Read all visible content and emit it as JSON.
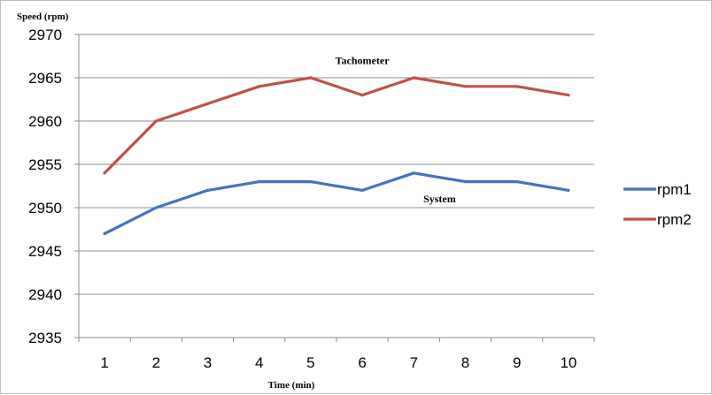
{
  "chart_data": {
    "type": "line",
    "ylabel": "Speed (rpm)",
    "xlabel": "Time (min)",
    "categories": [
      "1",
      "2",
      "3",
      "4",
      "5",
      "6",
      "7",
      "8",
      "9",
      "10"
    ],
    "ylim": [
      2935,
      2970
    ],
    "yticks": [
      2935,
      2940,
      2945,
      2950,
      2955,
      2960,
      2965,
      2970
    ],
    "grid": "horizontal",
    "legend_position": "right",
    "series": [
      {
        "name": "rpm1",
        "color": "#4472C4",
        "values": [
          2947,
          2950,
          2952,
          2953,
          2953,
          2952,
          2954,
          2953,
          2953,
          2952
        ]
      },
      {
        "name": "rpm2",
        "color": "#C0504D",
        "values": [
          2954,
          2960,
          2962,
          2964,
          2965,
          2963,
          2965,
          2964,
          2964,
          2963
        ]
      }
    ],
    "annotations": [
      {
        "text": "Tachometer",
        "x": "6",
        "y": 2967
      },
      {
        "text": "System",
        "x": "7.5",
        "y": 2951
      }
    ]
  }
}
